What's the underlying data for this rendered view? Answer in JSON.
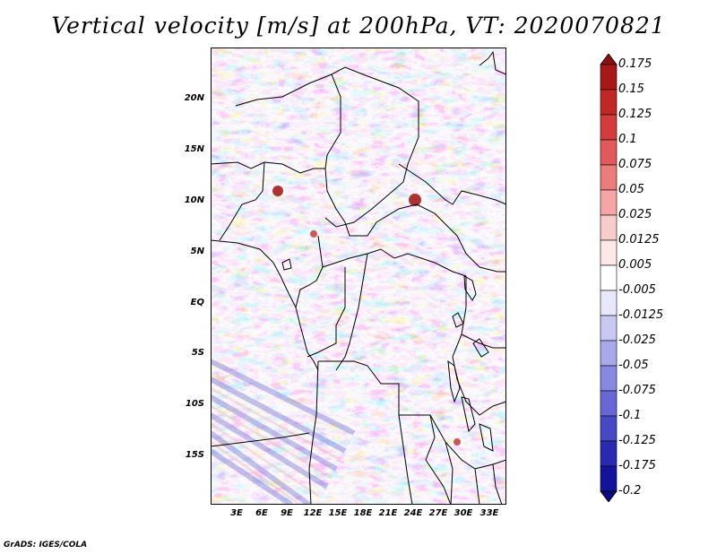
{
  "title": "Vertical velocity [m/s] at 200hPa, VT: 2020070821",
  "credit": "GrADS: IGES/COLA",
  "y_axis": [
    "20N",
    "15N",
    "10N",
    "5N",
    "EQ",
    "5S",
    "10S",
    "15S"
  ],
  "x_axis": [
    "3E",
    "6E",
    "9E",
    "12E",
    "15E",
    "18E",
    "21E",
    "24E",
    "27E",
    "30E",
    "33E"
  ],
  "colorbar": {
    "labels": [
      "0.175",
      "0.15",
      "0.125",
      "0.1",
      "0.075",
      "0.05",
      "0.025",
      "0.0125",
      "0.005",
      "-0.005",
      "-0.0125",
      "-0.025",
      "-0.05",
      "-0.075",
      "-0.1",
      "-0.125",
      "-0.175",
      "-0.2"
    ],
    "colors": [
      "#8a1010",
      "#a81818",
      "#c02828",
      "#d23c3c",
      "#e05a5a",
      "#ea7c7c",
      "#f4a6a6",
      "#f9cccc",
      "#fde8e8",
      "#ffffff",
      "#e8e8fb",
      "#c8c8f2",
      "#a8a8ea",
      "#8888e0",
      "#6868d4",
      "#4848c4",
      "#2a2ab0",
      "#14149a",
      "#0a0a80"
    ]
  },
  "map": {
    "lon_range": [
      0.5,
      35
    ],
    "lat_range": [
      -20,
      25
    ],
    "field_colors": {
      "positive": "#e06a6a",
      "negative": "#7b7bdc",
      "neutral": "#f3eef6"
    }
  }
}
